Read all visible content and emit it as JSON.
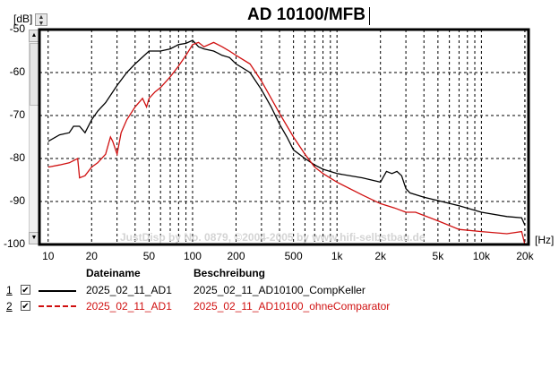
{
  "header": {
    "title": "AD 10100/MFB",
    "y_unit": "[dB]",
    "x_unit": "[Hz]"
  },
  "watermark": "JustDisp by No. 0879, ©2004-2005 by www.hifi-selbstbau.de",
  "legend": {
    "col_file": "Dateiname",
    "col_desc": "Beschreibung",
    "rows": [
      {
        "num": "1",
        "checked": "✔",
        "file": "2025_02_11_AD1",
        "desc": "2025_02_11_AD10100_CompKeller"
      },
      {
        "num": "2",
        "checked": "✔",
        "file": "2025_02_11_AD1",
        "desc": "2025_02_11_AD10100_ohneComparator"
      }
    ]
  },
  "chart_data": {
    "type": "line",
    "title": "AD 10100/MFB",
    "xlabel": "[Hz]",
    "ylabel": "[dB]",
    "xscale": "log",
    "xlim": [
      8.7,
      21200
    ],
    "ylim": [
      -100,
      -50
    ],
    "grid": true,
    "xticks": [
      "10",
      "20",
      "50",
      "100",
      "200",
      "500",
      "1k",
      "2k",
      "5k",
      "10k",
      "20k"
    ],
    "xtick_values": [
      10,
      20,
      50,
      100,
      200,
      500,
      1000,
      2000,
      5000,
      10000,
      20000
    ],
    "yticks": [
      "-50",
      "-60",
      "-70",
      "-80",
      "-90",
      "-100"
    ],
    "ytick_values": [
      -50,
      -60,
      -70,
      -80,
      -90,
      -100
    ],
    "series": [
      {
        "name": "2025_02_11_AD10100_CompKeller",
        "color": "#000000",
        "dash": "solid",
        "x": [
          10,
          12,
          14,
          15,
          16.5,
          18,
          20,
          22,
          25,
          30,
          35,
          40,
          50,
          60,
          70,
          80,
          90,
          100,
          110,
          120,
          140,
          150,
          160,
          180,
          200,
          250,
          300,
          350,
          400,
          450,
          500,
          600,
          700,
          800,
          1000,
          1500,
          2000,
          2200,
          2400,
          2600,
          2800,
          3000,
          3200,
          4000,
          5000,
          7000,
          10000,
          15000,
          19000,
          20000
        ],
        "y": [
          -76,
          -74.5,
          -74,
          -72.5,
          -72.5,
          -74,
          -71,
          -69,
          -67,
          -63,
          -60,
          -58,
          -55,
          -55,
          -54.5,
          -53.5,
          -53.2,
          -52.5,
          -54,
          -54.5,
          -55,
          -55.5,
          -56,
          -56.5,
          -58,
          -60,
          -64,
          -68,
          -72,
          -75,
          -78,
          -80,
          -81.5,
          -82.5,
          -83.5,
          -84.5,
          -85.5,
          -83,
          -83.5,
          -83,
          -84,
          -87,
          -88,
          -89,
          -89.8,
          -91,
          -92.5,
          -93.5,
          -93.8,
          -95.5
        ]
      },
      {
        "name": "2025_02_11_AD10100_ohneComparator",
        "color": "#d01010",
        "dash": "dashed",
        "x": [
          10,
          12,
          14,
          16,
          16.5,
          18,
          20,
          22,
          25,
          27,
          28,
          30,
          32,
          35,
          40,
          45,
          48,
          50,
          55,
          60,
          70,
          80,
          90,
          100,
          110,
          120,
          140,
          160,
          180,
          200,
          250,
          300,
          350,
          400,
          500,
          600,
          700,
          800,
          1000,
          1500,
          2000,
          2500,
          3000,
          3500,
          5000,
          7000,
          10000,
          15000,
          19000,
          20000
        ],
        "y": [
          -82,
          -81.5,
          -81,
          -80,
          -84.5,
          -84,
          -82,
          -81,
          -79,
          -75,
          -76,
          -79,
          -74,
          -71,
          -68,
          -66,
          -68,
          -66,
          -64.5,
          -63.5,
          -61,
          -58.5,
          -56,
          -53.5,
          -53,
          -54,
          -53,
          -54,
          -55,
          -56,
          -58,
          -62,
          -66,
          -69.5,
          -75,
          -79,
          -82,
          -83.5,
          -85.5,
          -88.5,
          -90.5,
          -91.5,
          -92.5,
          -92.5,
          -94.5,
          -96.5,
          -97,
          -97.5,
          -97,
          -100
        ]
      }
    ]
  }
}
